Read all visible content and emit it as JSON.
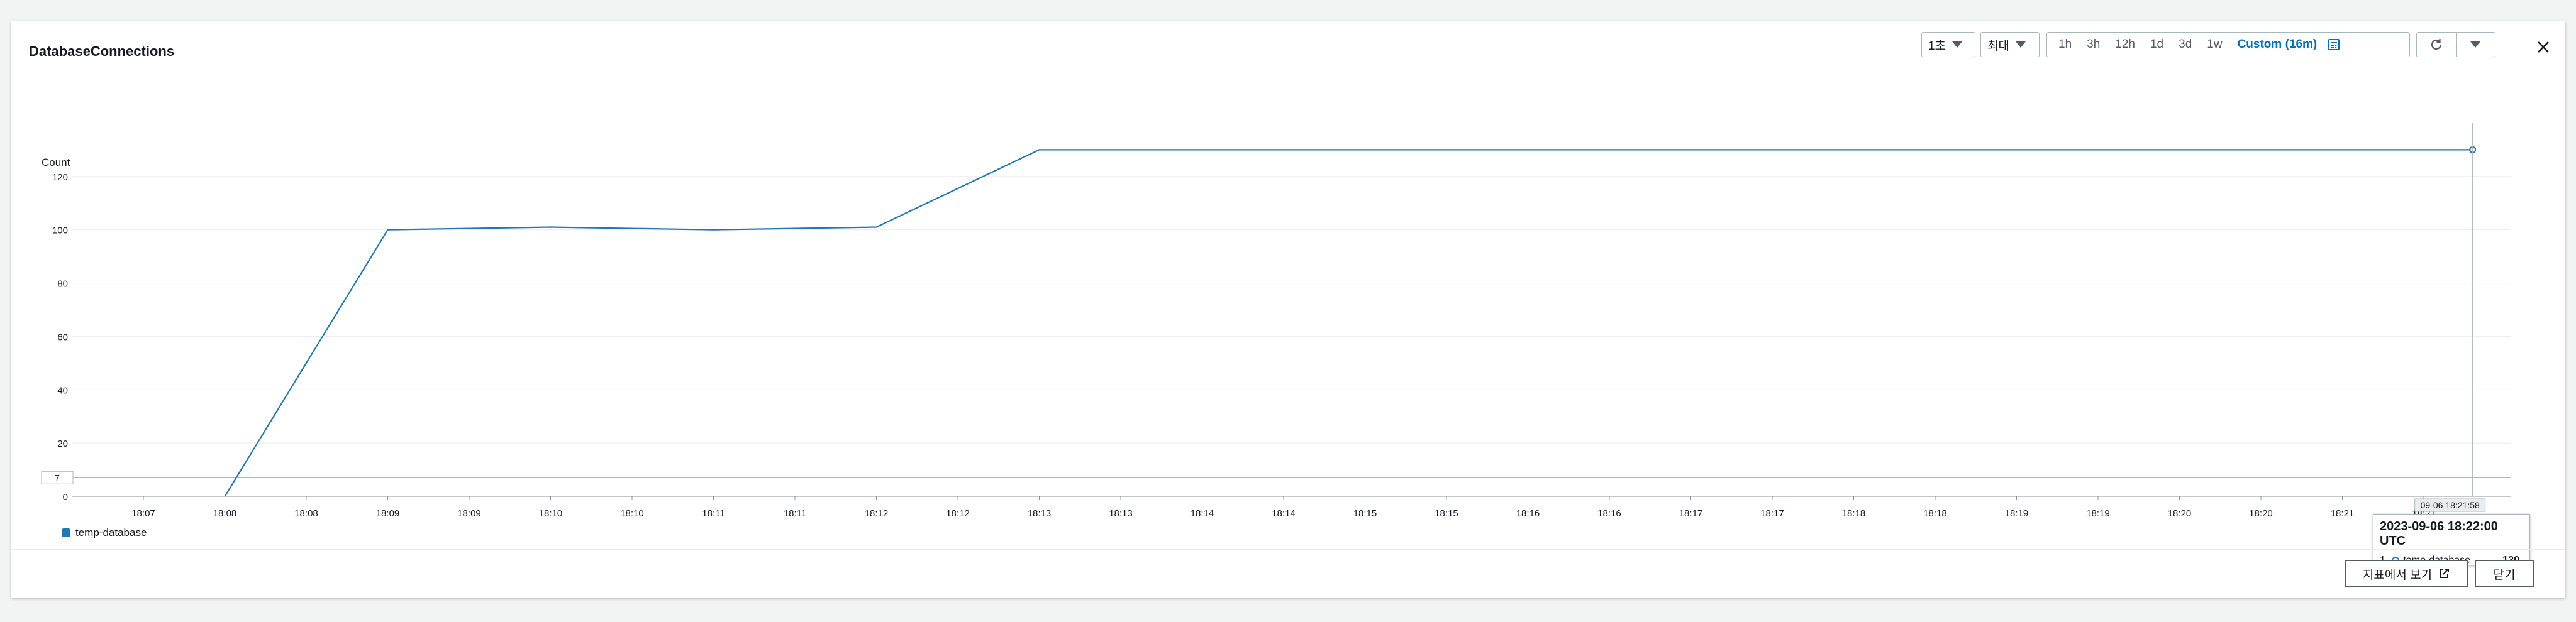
{
  "header": {
    "title": "DatabaseConnections",
    "period_select": "1초",
    "stat_select": "최대",
    "ranges": [
      "1h",
      "3h",
      "12h",
      "1d",
      "3d",
      "1w"
    ],
    "custom_range": "Custom (16m)"
  },
  "icons": {
    "refresh": "refresh-icon",
    "dropdown": "caret-down-icon",
    "close": "close-icon",
    "calendar": "calendar-icon",
    "external": "external-link-icon"
  },
  "footer": {
    "view_in_metrics": "지표에서 보기",
    "close": "닫기"
  },
  "tooltip": {
    "time": "2023-09-06 18:22:00 UTC",
    "index": "1.",
    "series": "temp-database",
    "value": "130"
  },
  "crosshair_label": "09-06 18:21:58",
  "threshold_label": "7",
  "chart_data": {
    "type": "line",
    "ylabel": "Count",
    "ylim": [
      0,
      140
    ],
    "yticks": [
      0,
      20,
      40,
      60,
      80,
      100,
      120
    ],
    "threshold": 7,
    "x_tick_labels": [
      "18:07",
      "18:08",
      "18:08",
      "18:09",
      "18:09",
      "18:10",
      "18:10",
      "18:11",
      "18:11",
      "18:12",
      "18:12",
      "18:13",
      "18:13",
      "18:14",
      "18:14",
      "18:15",
      "18:15",
      "18:16",
      "18:16",
      "18:17",
      "18:17",
      "18:18",
      "18:18",
      "18:19",
      "18:19",
      "18:20",
      "18:20",
      "18:21",
      "18:21"
    ],
    "series": [
      {
        "name": "temp-database",
        "color": "#1f77b4",
        "points": [
          {
            "t": 1,
            "v": 0
          },
          {
            "t": 3,
            "v": 100
          },
          {
            "t": 5,
            "v": 101
          },
          {
            "t": 7,
            "v": 100
          },
          {
            "t": 9,
            "v": 101
          },
          {
            "t": 11,
            "v": 130
          },
          {
            "t": 28.6,
            "v": 130
          }
        ]
      }
    ]
  }
}
